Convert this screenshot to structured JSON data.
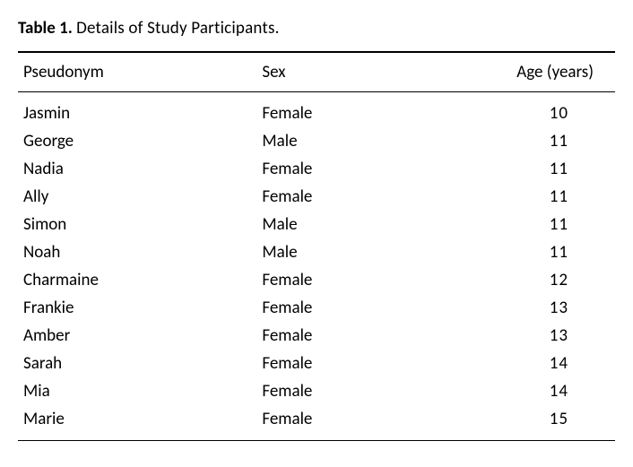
{
  "caption": {
    "label": "Table 1.",
    "title": "Details of Study Participants."
  },
  "columns": {
    "pseudonym": "Pseudonym",
    "sex": "Sex",
    "age": "Age (years)"
  },
  "rows": [
    {
      "pseudonym": "Jasmin",
      "sex": "Female",
      "age": "10"
    },
    {
      "pseudonym": "George",
      "sex": "Male",
      "age": "11"
    },
    {
      "pseudonym": "Nadia",
      "sex": "Female",
      "age": "11"
    },
    {
      "pseudonym": "Ally",
      "sex": "Female",
      "age": "11"
    },
    {
      "pseudonym": "Simon",
      "sex": "Male",
      "age": "11"
    },
    {
      "pseudonym": "Noah",
      "sex": "Male",
      "age": "11"
    },
    {
      "pseudonym": "Charmaine",
      "sex": "Female",
      "age": "12"
    },
    {
      "pseudonym": "Frankie",
      "sex": "Female",
      "age": "13"
    },
    {
      "pseudonym": "Amber",
      "sex": "Female",
      "age": "13"
    },
    {
      "pseudonym": "Sarah",
      "sex": "Female",
      "age": "14"
    },
    {
      "pseudonym": "Mia",
      "sex": "Female",
      "age": "14"
    },
    {
      "pseudonym": "Marie",
      "sex": "Female",
      "age": "15"
    }
  ],
  "style": {
    "font_family": "Gill Sans",
    "text_color": "#000000",
    "background_color": "#ffffff",
    "rule_color": "#000000",
    "caption_fontsize": 19,
    "header_fontsize": 19,
    "cell_fontsize": 19,
    "top_rule_width": 2,
    "inner_rule_width": 1.5,
    "bottom_rule_width": 1.5
  }
}
